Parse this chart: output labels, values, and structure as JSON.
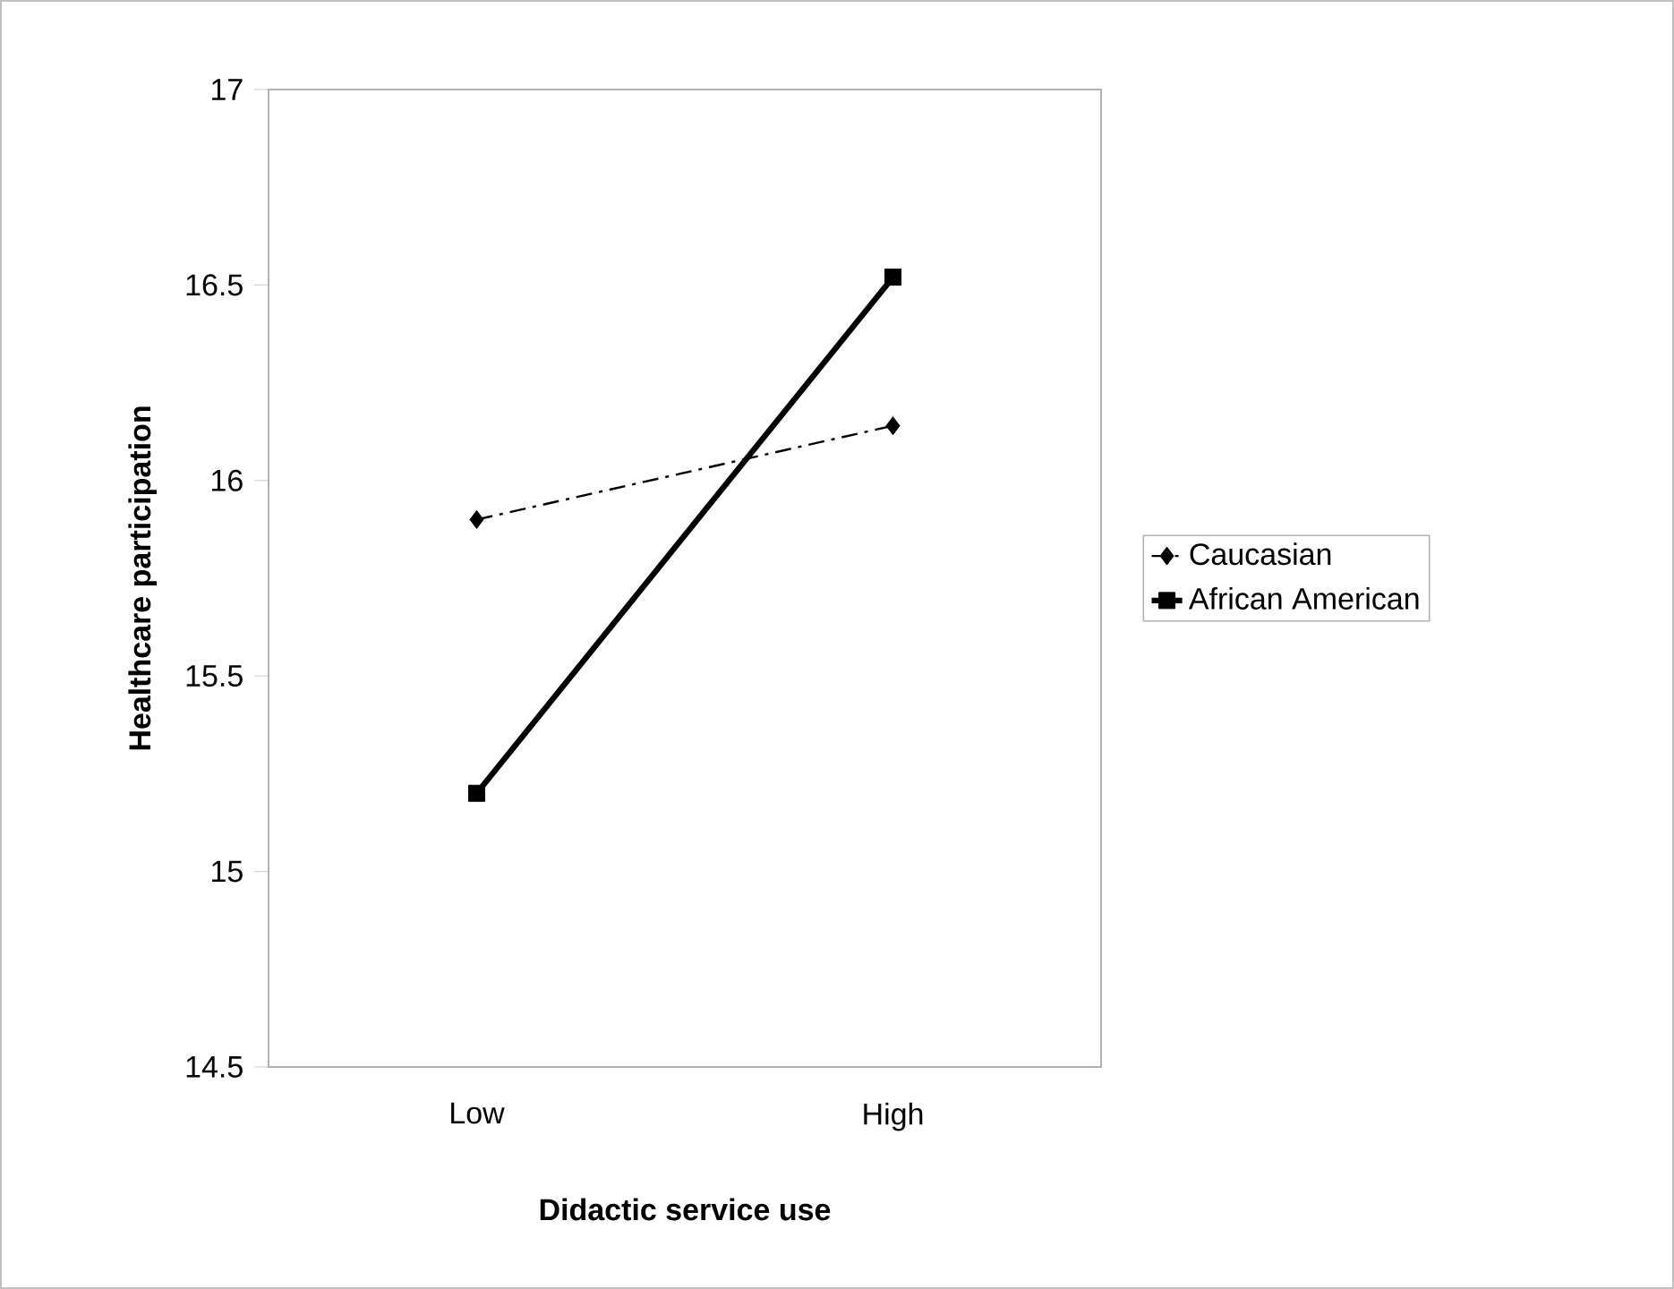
{
  "chart_data": {
    "type": "line",
    "xlabel": "Didactic service use",
    "ylabel": "Healthcare participation",
    "categories": [
      "Low",
      "High"
    ],
    "series": [
      {
        "name": "Caucasian",
        "color": "#000000",
        "values": [
          15.9,
          16.14
        ],
        "marker": "diamond",
        "line_style": "dashed"
      },
      {
        "name": "African American",
        "color": "#000000",
        "values": [
          15.2,
          16.52
        ],
        "marker": "square",
        "line_style": "solid"
      }
    ],
    "ylim": [
      14.5,
      17
    ],
    "yticks": [
      14.5,
      15,
      15.5,
      16,
      16.5,
      17
    ],
    "legend": "right",
    "grid": false
  }
}
